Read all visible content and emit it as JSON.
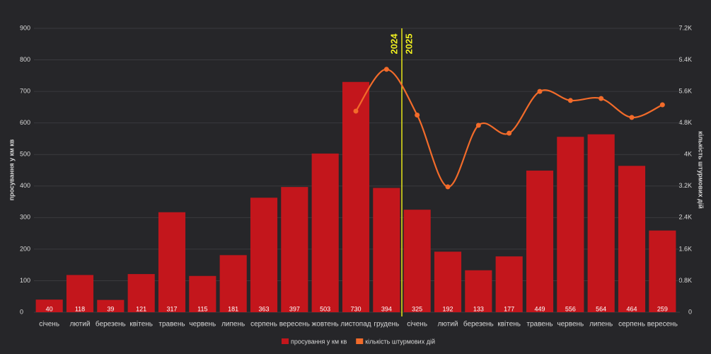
{
  "chart_data": {
    "type": "bar-line",
    "categories": [
      "січень",
      "лютий",
      "березень",
      "квітень",
      "травень",
      "червень",
      "липень",
      "серпень",
      "вересень",
      "жовтень",
      "листопад",
      "грудень",
      "січень",
      "лютий",
      "березень",
      "квітень",
      "травень",
      "червень",
      "липень",
      "серпень",
      "вересень"
    ],
    "series": [
      {
        "name": "просування у км кв",
        "type": "bar",
        "color": "#c3161c",
        "axis": "y",
        "values": [
          40,
          118,
          39,
          121,
          317,
          115,
          181,
          363,
          397,
          503,
          730,
          394,
          325,
          192,
          133,
          177,
          449,
          556,
          564,
          464,
          259
        ]
      },
      {
        "name": "кількість штурмових дій",
        "type": "line",
        "color": "#f26b2a",
        "axis": "y2",
        "values": [
          null,
          null,
          null,
          null,
          null,
          null,
          null,
          null,
          null,
          null,
          5100,
          6160,
          5000,
          3180,
          4740,
          4540,
          5600,
          5370,
          5420,
          4940,
          5260
        ]
      }
    ],
    "y_label": "просування у км кв",
    "y2_label": "кількість штурмових дій",
    "ylim": [
      0,
      900
    ],
    "yticks": [
      0,
      100,
      200,
      300,
      400,
      500,
      600,
      700,
      800,
      900
    ],
    "y2lim": [
      0,
      7200
    ],
    "y2ticks": [
      0,
      {
        "value": 800,
        "label": "0.8K"
      },
      {
        "value": 1600,
        "label": "1.6K"
      },
      {
        "value": 2400,
        "label": "2.4K"
      },
      {
        "value": 3200,
        "label": "3.2K"
      },
      {
        "value": 4000,
        "label": "4K"
      },
      {
        "value": 4800,
        "label": "4.8K"
      },
      {
        "value": 5600,
        "label": "5.6K"
      },
      {
        "value": 6400,
        "label": "6.4K"
      },
      {
        "value": 7200,
        "label": "7.2K"
      }
    ],
    "annotations": [
      "2024",
      "2025"
    ],
    "grid": true,
    "legend": "bottom"
  }
}
